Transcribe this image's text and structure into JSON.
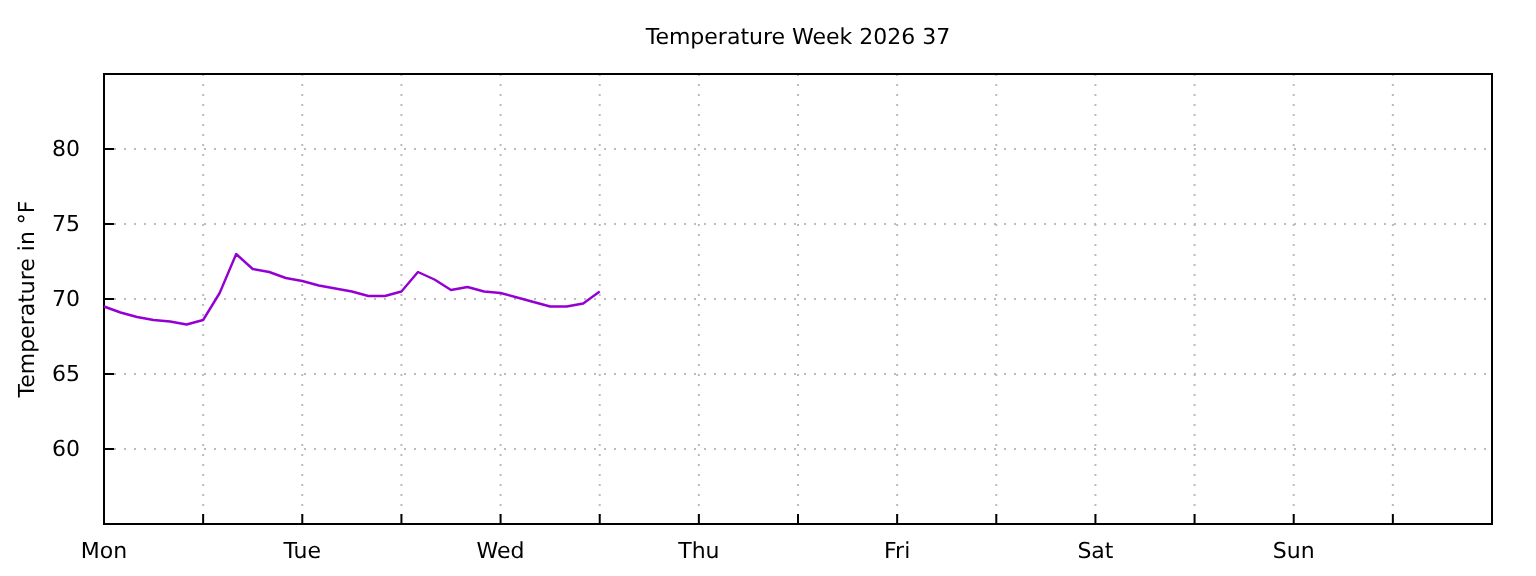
{
  "chart_data": {
    "type": "line",
    "title": "Temperature Week 2026 37",
    "ylabel": "Temperature in °F",
    "categories": [
      "Mon",
      null,
      null,
      null,
      null,
      null,
      null,
      null,
      null,
      null,
      null,
      null,
      "Tue",
      null,
      null,
      null,
      null,
      null,
      null,
      null,
      null,
      null,
      null,
      null,
      "Wed",
      null,
      null,
      null,
      null,
      null,
      null,
      null,
      null,
      null,
      null,
      null,
      "Thu",
      null,
      null,
      null,
      null,
      null,
      null,
      null,
      null,
      null,
      null,
      null,
      "Fri",
      null,
      null,
      null,
      null,
      null,
      null,
      null,
      null,
      null,
      null,
      null,
      "Sat",
      null,
      null,
      null,
      null,
      null,
      null,
      null,
      null,
      null,
      null,
      null,
      "Sun",
      null,
      null,
      null,
      null,
      null,
      null,
      null,
      null,
      null,
      null,
      null,
      null
    ],
    "ylim": [
      55,
      85
    ],
    "yticks": [
      60,
      65,
      70,
      75,
      80
    ],
    "grid": true,
    "legend": false,
    "marker": "none",
    "line_style": "solid",
    "series": [
      {
        "color": "#9400d3",
        "values": [
          69.5,
          69.1,
          68.8,
          68.6,
          68.5,
          68.3,
          68.6,
          70.4,
          73.0,
          72.0,
          71.8,
          71.4,
          71.2,
          70.9,
          70.7,
          70.5,
          70.2,
          70.2,
          70.5,
          71.8,
          71.3,
          70.6,
          70.8,
          70.5,
          70.4,
          70.1,
          69.8,
          69.5,
          69.5,
          69.7,
          70.5,
          null,
          null,
          null,
          null,
          null,
          null,
          null,
          null,
          null,
          null,
          null,
          null,
          null,
          null,
          null,
          null,
          null,
          null,
          null,
          null,
          null,
          null,
          null,
          null,
          null,
          null,
          null,
          null,
          null,
          null,
          null,
          null,
          null,
          null,
          null,
          null,
          null,
          null,
          null,
          null,
          null,
          null,
          null,
          null,
          null,
          null,
          null,
          null,
          null,
          null,
          null,
          null,
          null,
          null
        ]
      }
    ]
  }
}
